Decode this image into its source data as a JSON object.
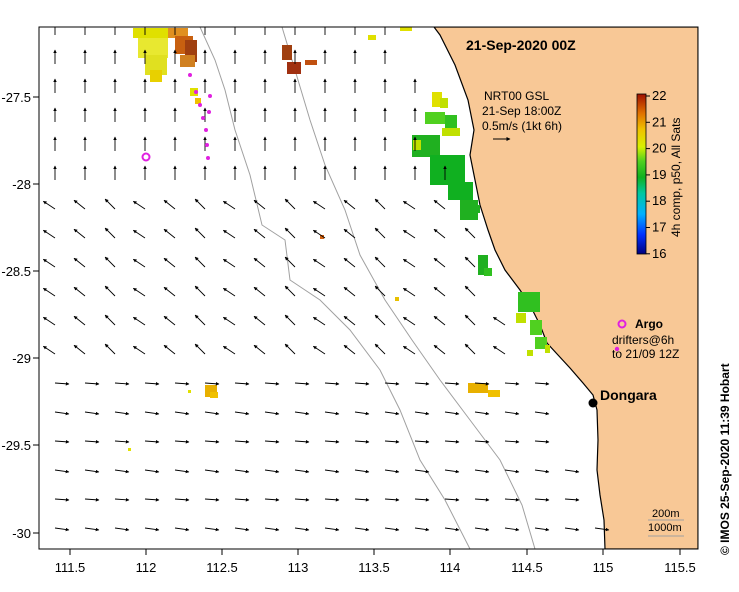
{
  "title": "21-Sep-2020 00Z",
  "map": {
    "lon_ticks": [
      "111.5",
      "112",
      "112.5",
      "113",
      "113.5",
      "114",
      "114.5",
      "115",
      "115.5"
    ],
    "lat_ticks": [
      "-27.5",
      "-28",
      "-28.5",
      "-29",
      "-29.5",
      "-30"
    ],
    "lon_range": [
      111.3,
      115.6
    ],
    "lat_range": [
      -27.05,
      -30.1
    ],
    "land_color": "#f8c896"
  },
  "current_source": {
    "line1": "NRT00 GSL",
    "line2": "21-Sep 18:00Z",
    "scale_label": "0.5m/s (1kt 6h)"
  },
  "colorbar": {
    "ticks": [
      "22",
      "21",
      "20",
      "19",
      "18",
      "17",
      "16"
    ],
    "label": "4h comp, p50, All Sats",
    "min": 16,
    "max": 22
  },
  "legend": {
    "argo_label": "Argo",
    "drifters_line1": "drifters@6h",
    "drifters_line2": "to 21/09 12Z"
  },
  "place": {
    "name": "Dongara"
  },
  "depth_contours": {
    "label1": "200m",
    "label2": "1000m"
  },
  "credit": "© IMOS 25-Sep-2020 11:39 Hobart"
}
